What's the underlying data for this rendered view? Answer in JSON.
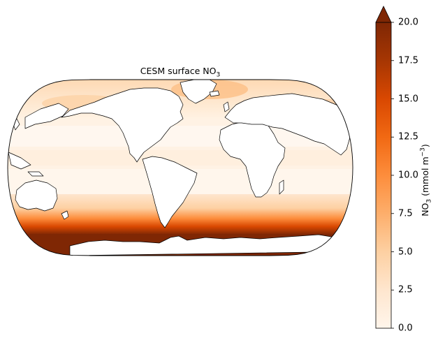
{
  "map": {
    "title_main": "CESM surface NO",
    "title_sub": "3",
    "projection": "Robinson",
    "central_longitude": -60,
    "field": "surface NO3 concentration",
    "land_color": "#ffffff",
    "coastline_color": "#000000"
  },
  "colorbar": {
    "label_pre": "NO",
    "label_sub": "3",
    "label_mid": " (mmol m",
    "label_sup": "−3",
    "label_post": ")",
    "vmin": 0.0,
    "vmax": 20.0,
    "extend": "max",
    "colormap": "Oranges",
    "colormap_stops": [
      "#fff5eb",
      "#fee6ce",
      "#fdd0a2",
      "#fdae6b",
      "#fd8d3c",
      "#f16913",
      "#d94801",
      "#a63603",
      "#7f2704"
    ],
    "ticks": [
      {
        "value": 0.0,
        "label": "0.0"
      },
      {
        "value": 2.5,
        "label": "2.5"
      },
      {
        "value": 5.0,
        "label": "5.0"
      },
      {
        "value": 7.5,
        "label": "7.5"
      },
      {
        "value": 10.0,
        "label": "10.0"
      },
      {
        "value": 12.5,
        "label": "12.5"
      },
      {
        "value": 15.0,
        "label": "15.0"
      },
      {
        "value": 17.5,
        "label": "17.5"
      },
      {
        "value": 20.0,
        "label": "20.0"
      }
    ]
  }
}
